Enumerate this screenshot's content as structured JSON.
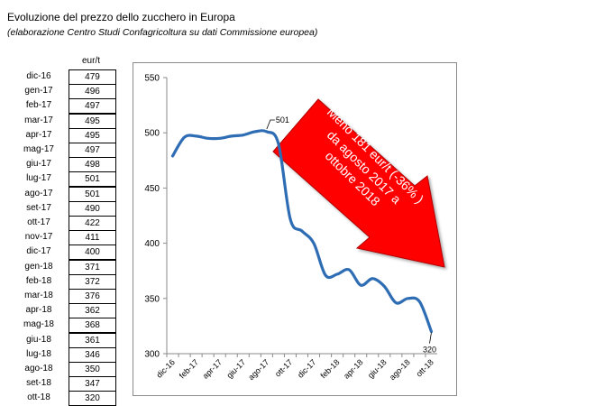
{
  "title": "Evoluzione del prezzo dello zucchero in Europa",
  "subtitle": "(elaborazione Centro Studi Confagricoltura su dati Commissione europea)",
  "table": {
    "unit": "eur/t",
    "rows": [
      {
        "month": "dic-16",
        "value": "479"
      },
      {
        "month": "gen-17",
        "value": "496"
      },
      {
        "month": "feb-17",
        "value": "497"
      },
      {
        "month": "mar-17",
        "value": "495"
      },
      {
        "month": "apr-17",
        "value": "495"
      },
      {
        "month": "mag-17",
        "value": "497"
      },
      {
        "month": "giu-17",
        "value": "498"
      },
      {
        "month": "lug-17",
        "value": "501"
      },
      {
        "month": "ago-17",
        "value": "501"
      },
      {
        "month": "set-17",
        "value": "490"
      },
      {
        "month": "ott-17",
        "value": "422"
      },
      {
        "month": "nov-17",
        "value": "411"
      },
      {
        "month": "dic-17",
        "value": "400"
      },
      {
        "month": "gen-18",
        "value": "371"
      },
      {
        "month": "feb-18",
        "value": "372"
      },
      {
        "month": "mar-18",
        "value": "376"
      },
      {
        "month": "apr-18",
        "value": "362"
      },
      {
        "month": "mag-18",
        "value": "368"
      },
      {
        "month": "giu-18",
        "value": "361"
      },
      {
        "month": "lug-18",
        "value": "346"
      },
      {
        "month": "ago-18",
        "value": "350"
      },
      {
        "month": "set-18",
        "value": "347"
      },
      {
        "month": "ott-18",
        "value": "320"
      }
    ]
  },
  "chart_data": {
    "type": "line",
    "title": "",
    "xlabel": "",
    "ylabel": "",
    "ylim": [
      300,
      550
    ],
    "yticks": [
      300,
      350,
      400,
      450,
      500,
      550
    ],
    "categories": [
      "dic-16",
      "gen-17",
      "feb-17",
      "mar-17",
      "apr-17",
      "mag-17",
      "giu-17",
      "lug-17",
      "ago-17",
      "set-17",
      "ott-17",
      "nov-17",
      "dic-17",
      "gen-18",
      "feb-18",
      "mar-18",
      "apr-18",
      "mag-18",
      "giu-18",
      "lug-18",
      "ago-18",
      "set-18",
      "ott-18"
    ],
    "xtick_labels": [
      "dic-16",
      "feb-17",
      "apr-17",
      "giu-17",
      "ago-17",
      "ott-17",
      "dic-17",
      "feb-18",
      "apr-18",
      "giu-18",
      "ago-18",
      "ott-18"
    ],
    "series": [
      {
        "values": [
          479,
          496,
          497,
          495,
          495,
          497,
          498,
          501,
          501,
          490,
          422,
          411,
          400,
          371,
          372,
          376,
          362,
          368,
          361,
          346,
          350,
          347,
          320
        ]
      }
    ],
    "grid": false,
    "line_color": "#2e6db4",
    "data_labels": [
      {
        "category": "ago-17",
        "text": "501"
      },
      {
        "category": "ott-18",
        "text": "320"
      }
    ],
    "annotation": {
      "lines": [
        "Meno 181 eur/t (-36% )",
        "da agosto 2017 a",
        "ottobre 2018"
      ],
      "arrow_color": "#ff0000",
      "text_color": "#ffffff"
    }
  }
}
